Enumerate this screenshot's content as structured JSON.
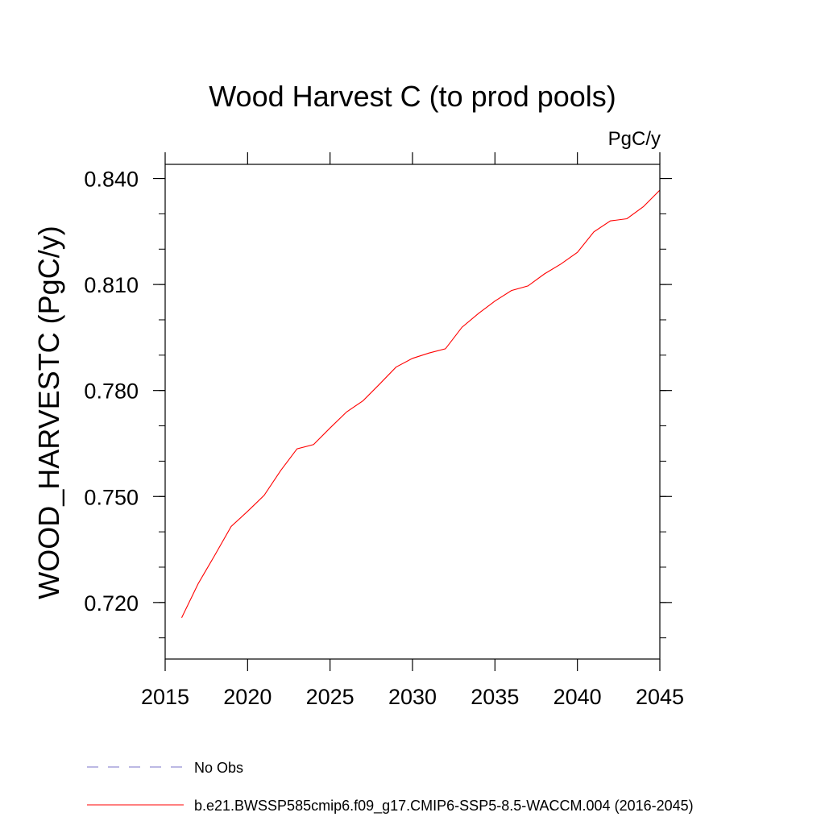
{
  "chart_data": {
    "type": "line",
    "title": "Wood Harvest C (to prod pools)",
    "units": "PgC/y",
    "ylabel": "WOOD_HARVESTC  (PgC/y)",
    "xlabel": "",
    "xlim": [
      2015,
      2045
    ],
    "ylim": [
      0.704,
      0.844
    ],
    "x_ticks": [
      2015,
      2020,
      2025,
      2030,
      2035,
      2040,
      2045
    ],
    "x_tick_labels": [
      "2015",
      "2020",
      "2025",
      "2030",
      "2035",
      "2040",
      "2045"
    ],
    "y_ticks": [
      0.72,
      0.75,
      0.78,
      0.81,
      0.84
    ],
    "y_tick_labels": [
      "0.720",
      "0.750",
      "0.780",
      "0.810",
      "0.840"
    ],
    "y_minor_ticks": [
      0.71,
      0.72,
      0.73,
      0.74,
      0.75,
      0.76,
      0.77,
      0.78,
      0.79,
      0.8,
      0.81,
      0.82,
      0.83,
      0.84
    ],
    "grid": false,
    "legend_position": "bottom",
    "series": [
      {
        "name": "No Obs",
        "color": "#7a73c8",
        "dash": "dashed",
        "x": [],
        "y": []
      },
      {
        "name": "b.e21.BWSSP585cmip6.f09_g17.CMIP6-SSP5-8.5-WACCM.004 (2016-2045)",
        "color": "#ff0000",
        "dash": "solid",
        "x": [
          2016,
          2017,
          2018,
          2019,
          2020,
          2021,
          2022,
          2023,
          2024,
          2025,
          2026,
          2027,
          2028,
          2029,
          2030,
          2031,
          2032,
          2033,
          2034,
          2035,
          2036,
          2037,
          2038,
          2039,
          2040,
          2041,
          2042,
          2043,
          2044,
          2045
        ],
        "y": [
          0.7157,
          0.7253,
          0.7333,
          0.7415,
          0.7458,
          0.7503,
          0.7573,
          0.7635,
          0.7647,
          0.7694,
          0.7739,
          0.7771,
          0.7818,
          0.7866,
          0.7891,
          0.7906,
          0.7918,
          0.7979,
          0.8018,
          0.8053,
          0.8083,
          0.8096,
          0.813,
          0.8158,
          0.8191,
          0.8249,
          0.828,
          0.8286,
          0.832,
          0.8367
        ]
      }
    ]
  }
}
